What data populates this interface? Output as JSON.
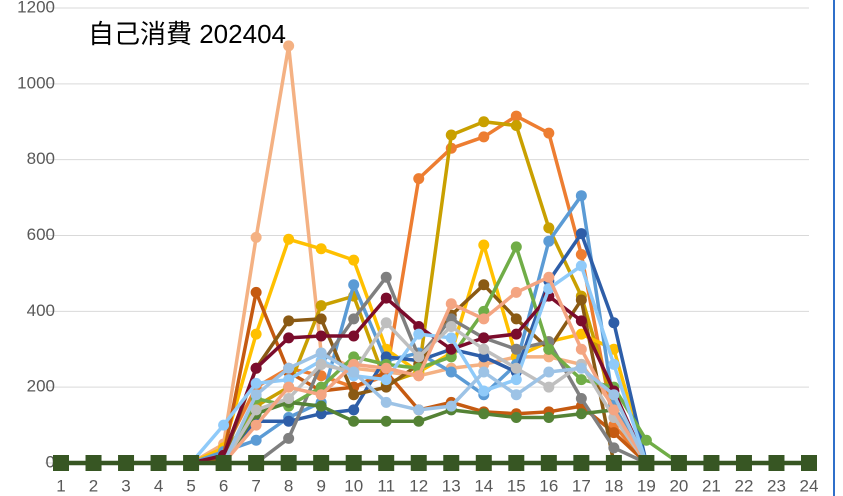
{
  "chart_data": {
    "type": "line",
    "title": "自己消費 202404",
    "categories": [
      "1",
      "2",
      "3",
      "4",
      "5",
      "6",
      "7",
      "8",
      "9",
      "10",
      "11",
      "12",
      "13",
      "14",
      "15",
      "16",
      "17",
      "18",
      "19",
      "20",
      "21",
      "22",
      "23",
      "24"
    ],
    "ylim": [
      0,
      1200
    ],
    "yticks": [
      0,
      200,
      400,
      600,
      800,
      1000,
      1200
    ],
    "grid": true,
    "series": [
      {
        "color": "#f4b183",
        "values": [
          0,
          0,
          0,
          0,
          0,
          50,
          595,
          1100,
          290,
          250,
          240,
          230,
          250,
          260,
          280,
          280,
          260,
          150,
          0,
          0,
          0,
          0,
          0,
          0
        ]
      },
      {
        "color": "#ed7d31",
        "values": [
          0,
          0,
          0,
          0,
          0,
          30,
          200,
          250,
          230,
          200,
          230,
          750,
          830,
          860,
          915,
          870,
          550,
          100,
          0,
          0,
          0,
          0,
          0,
          0
        ]
      },
      {
        "color": "#c9a000",
        "values": [
          0,
          0,
          0,
          0,
          0,
          20,
          150,
          200,
          415,
          440,
          210,
          240,
          865,
          900,
          890,
          620,
          440,
          150,
          0,
          0,
          0,
          0,
          0,
          0
        ]
      },
      {
        "color": "#ffc000",
        "values": [
          0,
          0,
          0,
          0,
          0,
          40,
          340,
          590,
          565,
          535,
          300,
          240,
          290,
          575,
          280,
          320,
          340,
          300,
          0,
          0,
          0,
          0,
          0,
          0
        ]
      },
      {
        "color": "#5b9bd5",
        "values": [
          0,
          0,
          0,
          0,
          0,
          30,
          60,
          120,
          160,
          470,
          270,
          290,
          240,
          180,
          260,
          585,
          705,
          150,
          0,
          0,
          0,
          0,
          0,
          0
        ]
      },
      {
        "color": "#2e5ea8",
        "values": [
          0,
          0,
          0,
          0,
          0,
          10,
          110,
          110,
          130,
          140,
          280,
          270,
          300,
          280,
          240,
          480,
          605,
          370,
          0,
          0,
          0,
          0,
          0,
          0
        ]
      },
      {
        "color": "#c55a11",
        "values": [
          0,
          0,
          0,
          0,
          0,
          20,
          450,
          240,
          190,
          200,
          240,
          140,
          160,
          135,
          130,
          135,
          150,
          80,
          0,
          0,
          0,
          0,
          0,
          0
        ]
      },
      {
        "color": "#8a5a14",
        "values": [
          0,
          0,
          0,
          0,
          0,
          10,
          250,
          375,
          380,
          180,
          200,
          260,
          390,
          470,
          380,
          300,
          430,
          0,
          0,
          0,
          0,
          0,
          0,
          0
        ]
      },
      {
        "color": "#7f7f7f",
        "values": [
          0,
          0,
          0,
          0,
          0,
          0,
          0,
          65,
          260,
          380,
          490,
          280,
          380,
          330,
          300,
          320,
          170,
          40,
          0,
          0,
          0,
          0,
          0,
          0
        ]
      },
      {
        "color": "#70ad47",
        "values": [
          0,
          0,
          0,
          0,
          0,
          0,
          170,
          150,
          200,
          280,
          260,
          250,
          280,
          400,
          570,
          300,
          220,
          200,
          60,
          0,
          0,
          0,
          0,
          0
        ]
      },
      {
        "color": "#548235",
        "values": [
          0,
          0,
          0,
          0,
          0,
          0,
          130,
          160,
          150,
          110,
          110,
          110,
          140,
          130,
          120,
          120,
          130,
          140,
          0,
          0,
          0,
          0,
          0,
          0
        ]
      },
      {
        "color": "#7b0c2c",
        "values": [
          0,
          0,
          0,
          0,
          0,
          20,
          250,
          330,
          335,
          335,
          435,
          360,
          300,
          330,
          340,
          440,
          375,
          190,
          0,
          0,
          0,
          0,
          0,
          0
        ]
      },
      {
        "color": "#8fcaf9",
        "values": [
          0,
          0,
          0,
          0,
          0,
          100,
          210,
          220,
          270,
          230,
          220,
          340,
          330,
          190,
          220,
          460,
          520,
          260,
          0,
          0,
          0,
          0,
          0,
          0
        ]
      },
      {
        "color": "#bfbfbf",
        "values": [
          0,
          0,
          0,
          0,
          0,
          0,
          140,
          170,
          260,
          240,
          370,
          280,
          360,
          300,
          250,
          200,
          260,
          120,
          0,
          0,
          0,
          0,
          0,
          0
        ]
      },
      {
        "color": "#f4a582",
        "values": [
          0,
          0,
          0,
          0,
          0,
          0,
          100,
          200,
          180,
          260,
          250,
          230,
          420,
          380,
          450,
          490,
          300,
          140,
          0,
          0,
          0,
          0,
          0,
          0
        ]
      },
      {
        "color": "#9dc3e6",
        "values": [
          0,
          0,
          0,
          0,
          0,
          0,
          180,
          250,
          290,
          240,
          160,
          140,
          150,
          240,
          180,
          240,
          250,
          180,
          0,
          0,
          0,
          0,
          0,
          0
        ]
      },
      {
        "color": "#375623",
        "marker": "square",
        "values": [
          0,
          0,
          0,
          0,
          0,
          0,
          0,
          0,
          0,
          0,
          0,
          0,
          0,
          0,
          0,
          0,
          0,
          0,
          0,
          0,
          0,
          0,
          0,
          0
        ]
      }
    ]
  }
}
